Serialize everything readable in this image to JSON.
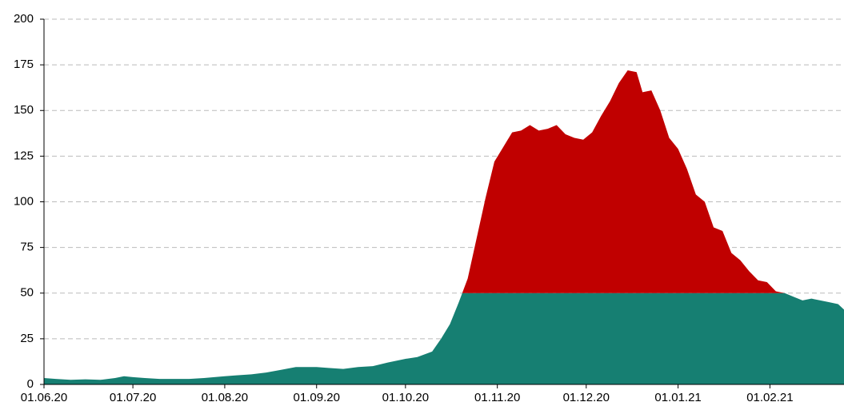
{
  "chart_data": {
    "type": "area",
    "x": [
      "01.06.20",
      "05.06.20",
      "10.06.20",
      "15.06.20",
      "20.06.20",
      "25.06.20",
      "28.06.20",
      "01.07.20",
      "05.07.20",
      "10.07.20",
      "15.07.20",
      "20.07.20",
      "25.07.20",
      "01.08.20",
      "05.08.20",
      "10.08.20",
      "15.08.20",
      "20.08.20",
      "25.08.20",
      "01.09.20",
      "05.09.20",
      "10.09.20",
      "15.09.20",
      "20.09.20",
      "25.09.20",
      "01.10.20",
      "05.10.20",
      "10.10.20",
      "13.10.20",
      "16.10.20",
      "19.10.20",
      "22.10.20",
      "25.10.20",
      "28.10.20",
      "31.10.20",
      "03.11.20",
      "06.11.20",
      "09.11.20",
      "12.11.20",
      "15.11.20",
      "18.11.20",
      "21.11.20",
      "24.11.20",
      "27.11.20",
      "30.11.20",
      "03.12.20",
      "06.12.20",
      "09.12.20",
      "12.12.20",
      "15.12.20",
      "18.12.20",
      "20.12.20",
      "23.12.20",
      "26.12.20",
      "29.12.20",
      "01.01.21",
      "04.01.21",
      "07.01.21",
      "10.01.21",
      "13.01.21",
      "16.01.21",
      "19.01.21",
      "22.01.21",
      "25.01.21",
      "28.01.21",
      "31.01.21",
      "03.02.21",
      "06.02.21",
      "09.02.21",
      "12.02.21",
      "15.02.21",
      "18.02.21",
      "21.02.21",
      "24.02.21",
      "26.02.21"
    ],
    "values": [
      3.5,
      3,
      2.5,
      2.8,
      2.5,
      3.5,
      4.5,
      4,
      3.5,
      3,
      3,
      3,
      3.5,
      4.5,
      5,
      5.5,
      6.5,
      8,
      9.5,
      9.5,
      9,
      8.5,
      9.5,
      10,
      12,
      14,
      15,
      18,
      25,
      33,
      45,
      58,
      80,
      102,
      122,
      130,
      138,
      139,
      142,
      139,
      140,
      142,
      137,
      135,
      134,
      138,
      147,
      155,
      165,
      172,
      171,
      160,
      161,
      150,
      135,
      129,
      118,
      104,
      100,
      86,
      84,
      72,
      68,
      62,
      57,
      56,
      51,
      50,
      48,
      46,
      47,
      46,
      45,
      44,
      41
    ],
    "threshold": 50,
    "color_below": "#167f72",
    "color_above": "#c00000",
    "xlim": [
      "01.06.20",
      "26.02.21"
    ],
    "xticks": [
      "01.06.20",
      "01.07.20",
      "01.08.20",
      "01.09.20",
      "01.10.20",
      "01.11.20",
      "01.12.20",
      "01.01.21",
      "01.02.21"
    ],
    "ylim": [
      0,
      200
    ],
    "yticks": [
      0,
      25,
      50,
      75,
      100,
      125,
      150,
      175,
      200
    ],
    "grid": true
  }
}
